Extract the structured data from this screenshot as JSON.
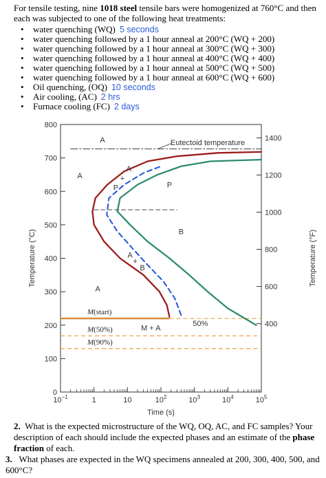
{
  "intro": {
    "before_bold": "For tensile testing, nine ",
    "bold": "1018 steel",
    "after_bold": " tensile bars were homogenized at 760°C and then each was subjected to one of the following heat treatments:"
  },
  "treatments": [
    {
      "text": "water quenching (WQ)",
      "note": "5 seconds"
    },
    {
      "text": "water quenching followed by a 1 hour anneal at 200°C (WQ + 200)",
      "note": ""
    },
    {
      "text": "water quenching followed by a 1 hour anneal at 300°C (WQ + 300)",
      "note": ""
    },
    {
      "text": "water quenching followed by a 1 hour anneal at 400°C (WQ + 400)",
      "note": ""
    },
    {
      "text": "water quenching followed by a 1 hour anneal at 500°C (WQ + 500)",
      "note": ""
    },
    {
      "text": "water quenching followed by a 1 hour anneal at 600°C (WQ + 600)",
      "note": ""
    },
    {
      "text": "Oil quenching, (OQ)",
      "note": "10 seconds"
    },
    {
      "text": "Air cooling, (AC)",
      "note": "2 hrs"
    },
    {
      "text": "Furnace cooling (FC)",
      "note": "2 days"
    }
  ],
  "bullet_char": "•",
  "chart_data": {
    "type": "line",
    "xlabel": "Time (s)",
    "ylabel_left": "Temperature (°C)",
    "ylabel_right": "Temperature (°F)",
    "x_scale": "log",
    "xlim": [
      0.1,
      100000
    ],
    "ylim": [
      0,
      800
    ],
    "x_ticks": [
      {
        "value": 0.1,
        "base": "10",
        "exp": "−1"
      },
      {
        "value": 1,
        "base": "1",
        "exp": ""
      },
      {
        "value": 10,
        "base": "10",
        "exp": ""
      },
      {
        "value": 100,
        "base": "10",
        "exp": "2"
      },
      {
        "value": 1000,
        "base": "10",
        "exp": "3"
      },
      {
        "value": 10000,
        "base": "10",
        "exp": "4"
      },
      {
        "value": 100000,
        "base": "10",
        "exp": "5"
      }
    ],
    "y_ticks_left": [
      0,
      100,
      200,
      300,
      400,
      500,
      600,
      700,
      800
    ],
    "y_ticks_right": [
      {
        "label": "400",
        "celsius": 204.4
      },
      {
        "label": "600",
        "celsius": 315.6
      },
      {
        "label": "800",
        "celsius": 426.7
      },
      {
        "label": "1000",
        "celsius": 537.8
      },
      {
        "label": "1200",
        "celsius": 648.9
      },
      {
        "label": "1400",
        "celsius": 760
      }
    ],
    "series": [
      {
        "key": "start",
        "style": "solid",
        "color": "#9b1c1c",
        "points": [
          [
            180,
            225
          ],
          [
            150,
            260
          ],
          [
            90,
            300
          ],
          [
            30,
            350
          ],
          [
            6,
            400
          ],
          [
            2,
            450
          ],
          [
            1,
            500
          ],
          [
            0.9,
            540
          ],
          [
            1.1,
            580
          ],
          [
            2.5,
            620
          ],
          [
            8,
            660
          ],
          [
            40,
            690
          ],
          [
            300,
            705
          ],
          [
            5000,
            715
          ],
          [
            100000,
            718
          ]
        ]
      },
      {
        "key": "finish",
        "style": "solid",
        "color": "#2e8b6e",
        "points": [
          [
            70000,
            200
          ],
          [
            10000,
            250
          ],
          [
            2500,
            300
          ],
          [
            700,
            350
          ],
          [
            180,
            400
          ],
          [
            40,
            450
          ],
          [
            12,
            500
          ],
          [
            5,
            540
          ],
          [
            6,
            580
          ],
          [
            20,
            620
          ],
          [
            80,
            650
          ],
          [
            400,
            675
          ],
          [
            3000,
            690
          ],
          [
            100000,
            695
          ]
        ]
      },
      {
        "key": "fifty",
        "style": "dashed",
        "color": "#2a5bd7",
        "points": [
          [
            400,
            230
          ],
          [
            260,
            280
          ],
          [
            120,
            330
          ],
          [
            40,
            380
          ],
          [
            14,
            430
          ],
          [
            5,
            480
          ],
          [
            2.4,
            530
          ],
          [
            2.8,
            580
          ],
          [
            8,
            620
          ],
          [
            30,
            655
          ],
          [
            100,
            675
          ]
        ]
      },
      {
        "key": "eutectoid",
        "style": "dashdot",
        "color": "#444444",
        "points": [
          [
            0.2,
            727
          ],
          [
            100000,
            727
          ]
        ]
      },
      {
        "key": "nose_guide",
        "style": "dashed",
        "color": "#444444",
        "points": [
          [
            1,
            545
          ],
          [
            300,
            545
          ]
        ]
      }
    ],
    "ms_lines": [
      {
        "label": "M(start)",
        "letter": "M",
        "suffix": "(start)",
        "temp": 220,
        "style": "solid",
        "color": "#d88a3a",
        "t_end": 180
      },
      {
        "label": "M(50%)",
        "letter": "M",
        "suffix": "(50%)",
        "temp": 168,
        "style": "dashed",
        "color": "#ecaa5c",
        "t_end": 100000
      },
      {
        "label": "M(90%)",
        "letter": "M",
        "suffix": "(90%)",
        "temp": 130,
        "style": "dashed",
        "color": "#ecaa5c",
        "t_end": 100000
      }
    ],
    "ms_extension": {
      "temp": 220,
      "t_start": 180,
      "t_end": 100000,
      "color": "#ecaa5c"
    },
    "annotations": [
      {
        "text": "A",
        "t": 1.8,
        "temp": 755
      },
      {
        "text": "A",
        "t": 0.38,
        "temp": 648
      },
      {
        "text": "A",
        "t": 11,
        "temp": 668
      },
      {
        "text": "+",
        "t": 7,
        "temp": 640
      },
      {
        "text": "P",
        "t": 4.5,
        "temp": 612
      },
      {
        "text": "P",
        "t": 180,
        "temp": 620
      },
      {
        "text": "B",
        "t": 400,
        "temp": 480
      },
      {
        "text": "A",
        "t": 12,
        "temp": 410
      },
      {
        "text": "+",
        "t": 17,
        "temp": 392
      },
      {
        "text": "B",
        "t": 28,
        "temp": 372
      },
      {
        "text": "A",
        "t": 1.3,
        "temp": 310
      },
      {
        "text": "M + A",
        "t": 50,
        "temp": 192
      },
      {
        "text": "50%",
        "t": 1500,
        "temp": 206
      },
      {
        "text": "Eutectoid temperature",
        "t": 2500,
        "temp": 747
      }
    ]
  },
  "question2": {
    "number": "2.",
    "before_bold": "What is the expected microstructure of the WQ, OQ, AC, and FC samples? Your description of each should include the expected phases and an estimate of the ",
    "bold": "phase fraction",
    "after_bold": " of each."
  },
  "question3": {
    "number": "3.",
    "text": "What phases are expected in the WQ specimens annealed at 200, 300, 400, 500, and 600°C?"
  }
}
